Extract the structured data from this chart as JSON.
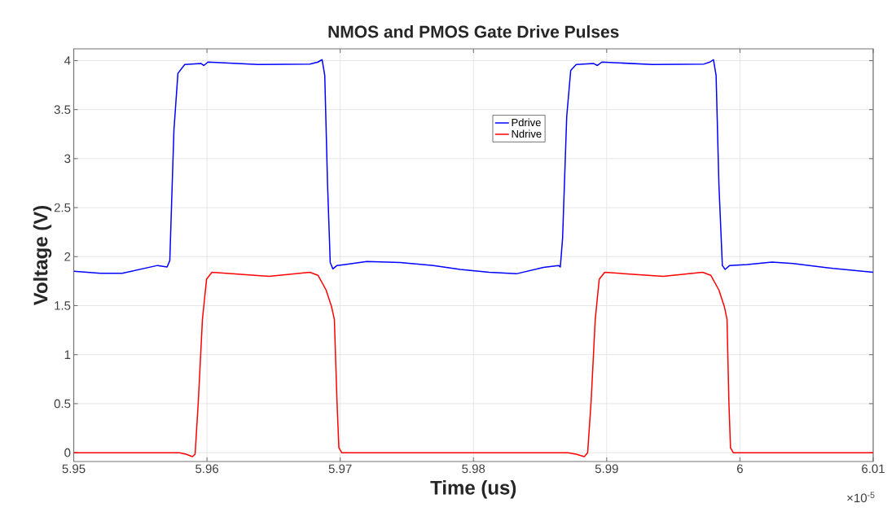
{
  "chart_data": {
    "type": "line",
    "title": "NMOS and PMOS Gate Drive Pulses",
    "xlabel": "Time (us)",
    "ylabel": "Voltage (V)",
    "annotations": [
      "×10$^{-5}$"
    ],
    "xlim": [
      5.95,
      6.01
    ],
    "ylim": [
      -0.09,
      4.12
    ],
    "xticks": [
      5.95,
      5.96,
      5.97,
      5.98,
      5.99,
      6,
      6.01
    ],
    "yticks": [
      0,
      0.5,
      1,
      1.5,
      2,
      2.5,
      3,
      3.5,
      4
    ],
    "grid": true,
    "legend": "top",
    "marker": "none",
    "line_style": "solid",
    "series": [
      {
        "name": "Pdrive",
        "color": "#0000ff",
        "x": [
          5.95,
          5.952,
          5.95364,
          5.95629,
          5.95701,
          5.95721,
          5.95752,
          5.95782,
          5.95833,
          5.95956,
          5.95976,
          5.96007,
          5.96384,
          5.96772,
          5.96833,
          5.96864,
          5.96884,
          5.96905,
          5.96925,
          5.96945,
          5.96976,
          5.97037,
          5.972,
          5.9745,
          5.977,
          5.979,
          5.98118,
          5.98322,
          5.98526,
          5.98638,
          5.98652,
          5.98669,
          5.987,
          5.9873,
          5.98771,
          5.98903,
          5.9893,
          5.98964,
          5.99342,
          5.9973,
          5.99775,
          5.99801,
          5.99821,
          5.99842,
          5.99868,
          5.99889,
          5.99923,
          6.00056,
          6.0024,
          6.004,
          6.007,
          6.01
        ],
        "values": [
          1.85,
          1.83,
          1.83,
          1.91,
          1.895,
          1.96,
          3.29,
          3.87,
          3.96,
          3.97,
          3.95,
          3.985,
          3.96,
          3.965,
          3.985,
          4.01,
          3.85,
          2.74,
          1.94,
          1.875,
          1.91,
          1.92,
          1.95,
          1.94,
          1.91,
          1.87,
          1.84,
          1.825,
          1.89,
          1.91,
          1.895,
          2.19,
          3.43,
          3.9,
          3.96,
          3.97,
          3.95,
          3.985,
          3.96,
          3.965,
          3.985,
          4.01,
          3.85,
          2.74,
          1.91,
          1.87,
          1.91,
          1.92,
          1.945,
          1.93,
          1.88,
          1.84
        ]
      },
      {
        "name": "Ndrive",
        "color": "#ff0000",
        "x": [
          5.95,
          5.95793,
          5.95843,
          5.95891,
          5.95911,
          5.95935,
          5.95966,
          5.95997,
          5.96037,
          5.96466,
          5.96772,
          5.96833,
          5.96894,
          5.96935,
          5.96956,
          5.96976,
          5.9699,
          5.97012,
          5.9871,
          5.98771,
          5.98832,
          5.98857,
          5.98883,
          5.98914,
          5.98944,
          5.98985,
          5.99424,
          5.9972,
          5.99781,
          5.99842,
          5.99883,
          5.99903,
          5.99917,
          5.99929,
          5.9995,
          6.01
        ],
        "values": [
          0,
          0,
          -0.015,
          -0.04,
          -0.015,
          0.52,
          1.36,
          1.77,
          1.84,
          1.8,
          1.84,
          1.81,
          1.66,
          1.49,
          1.36,
          0.52,
          0.05,
          0,
          0,
          -0.015,
          -0.04,
          0,
          0.52,
          1.36,
          1.77,
          1.84,
          1.8,
          1.84,
          1.81,
          1.66,
          1.49,
          1.36,
          0.52,
          0.05,
          0,
          0
        ]
      }
    ]
  }
}
